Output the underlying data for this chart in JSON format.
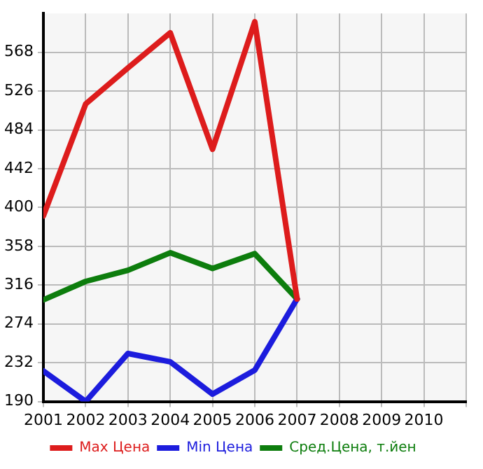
{
  "chart_data": {
    "type": "line",
    "x": [
      2001,
      2002,
      2003,
      2004,
      2005,
      2006,
      2007
    ],
    "xlim": [
      2001,
      2011
    ],
    "xticks": [
      2001,
      2002,
      2003,
      2004,
      2005,
      2006,
      2007,
      2008,
      2009,
      2010,
      {
        "value": 2011,
        "label": null
      }
    ],
    "ylim": [
      190,
      610
    ],
    "yticks": [
      190,
      232,
      274,
      316,
      358,
      400,
      442,
      484,
      526,
      568
    ],
    "series": [
      {
        "name": "Max Цена",
        "color": "#dd1c1c",
        "values": [
          391,
          512,
          551,
          589,
          463,
          601,
          301
        ]
      },
      {
        "name": "Min Цена",
        "color": "#1c1cdd",
        "values": [
          223,
          190,
          242,
          233,
          198,
          224,
          301
        ]
      },
      {
        "name": "Сред.Цена, т.йен",
        "color": "#0d7d0d",
        "values": [
          300,
          320,
          332,
          351,
          334,
          350,
          301
        ]
      }
    ],
    "grid": true,
    "legend": "bottom",
    "marker": "none",
    "line_style": "solid"
  }
}
